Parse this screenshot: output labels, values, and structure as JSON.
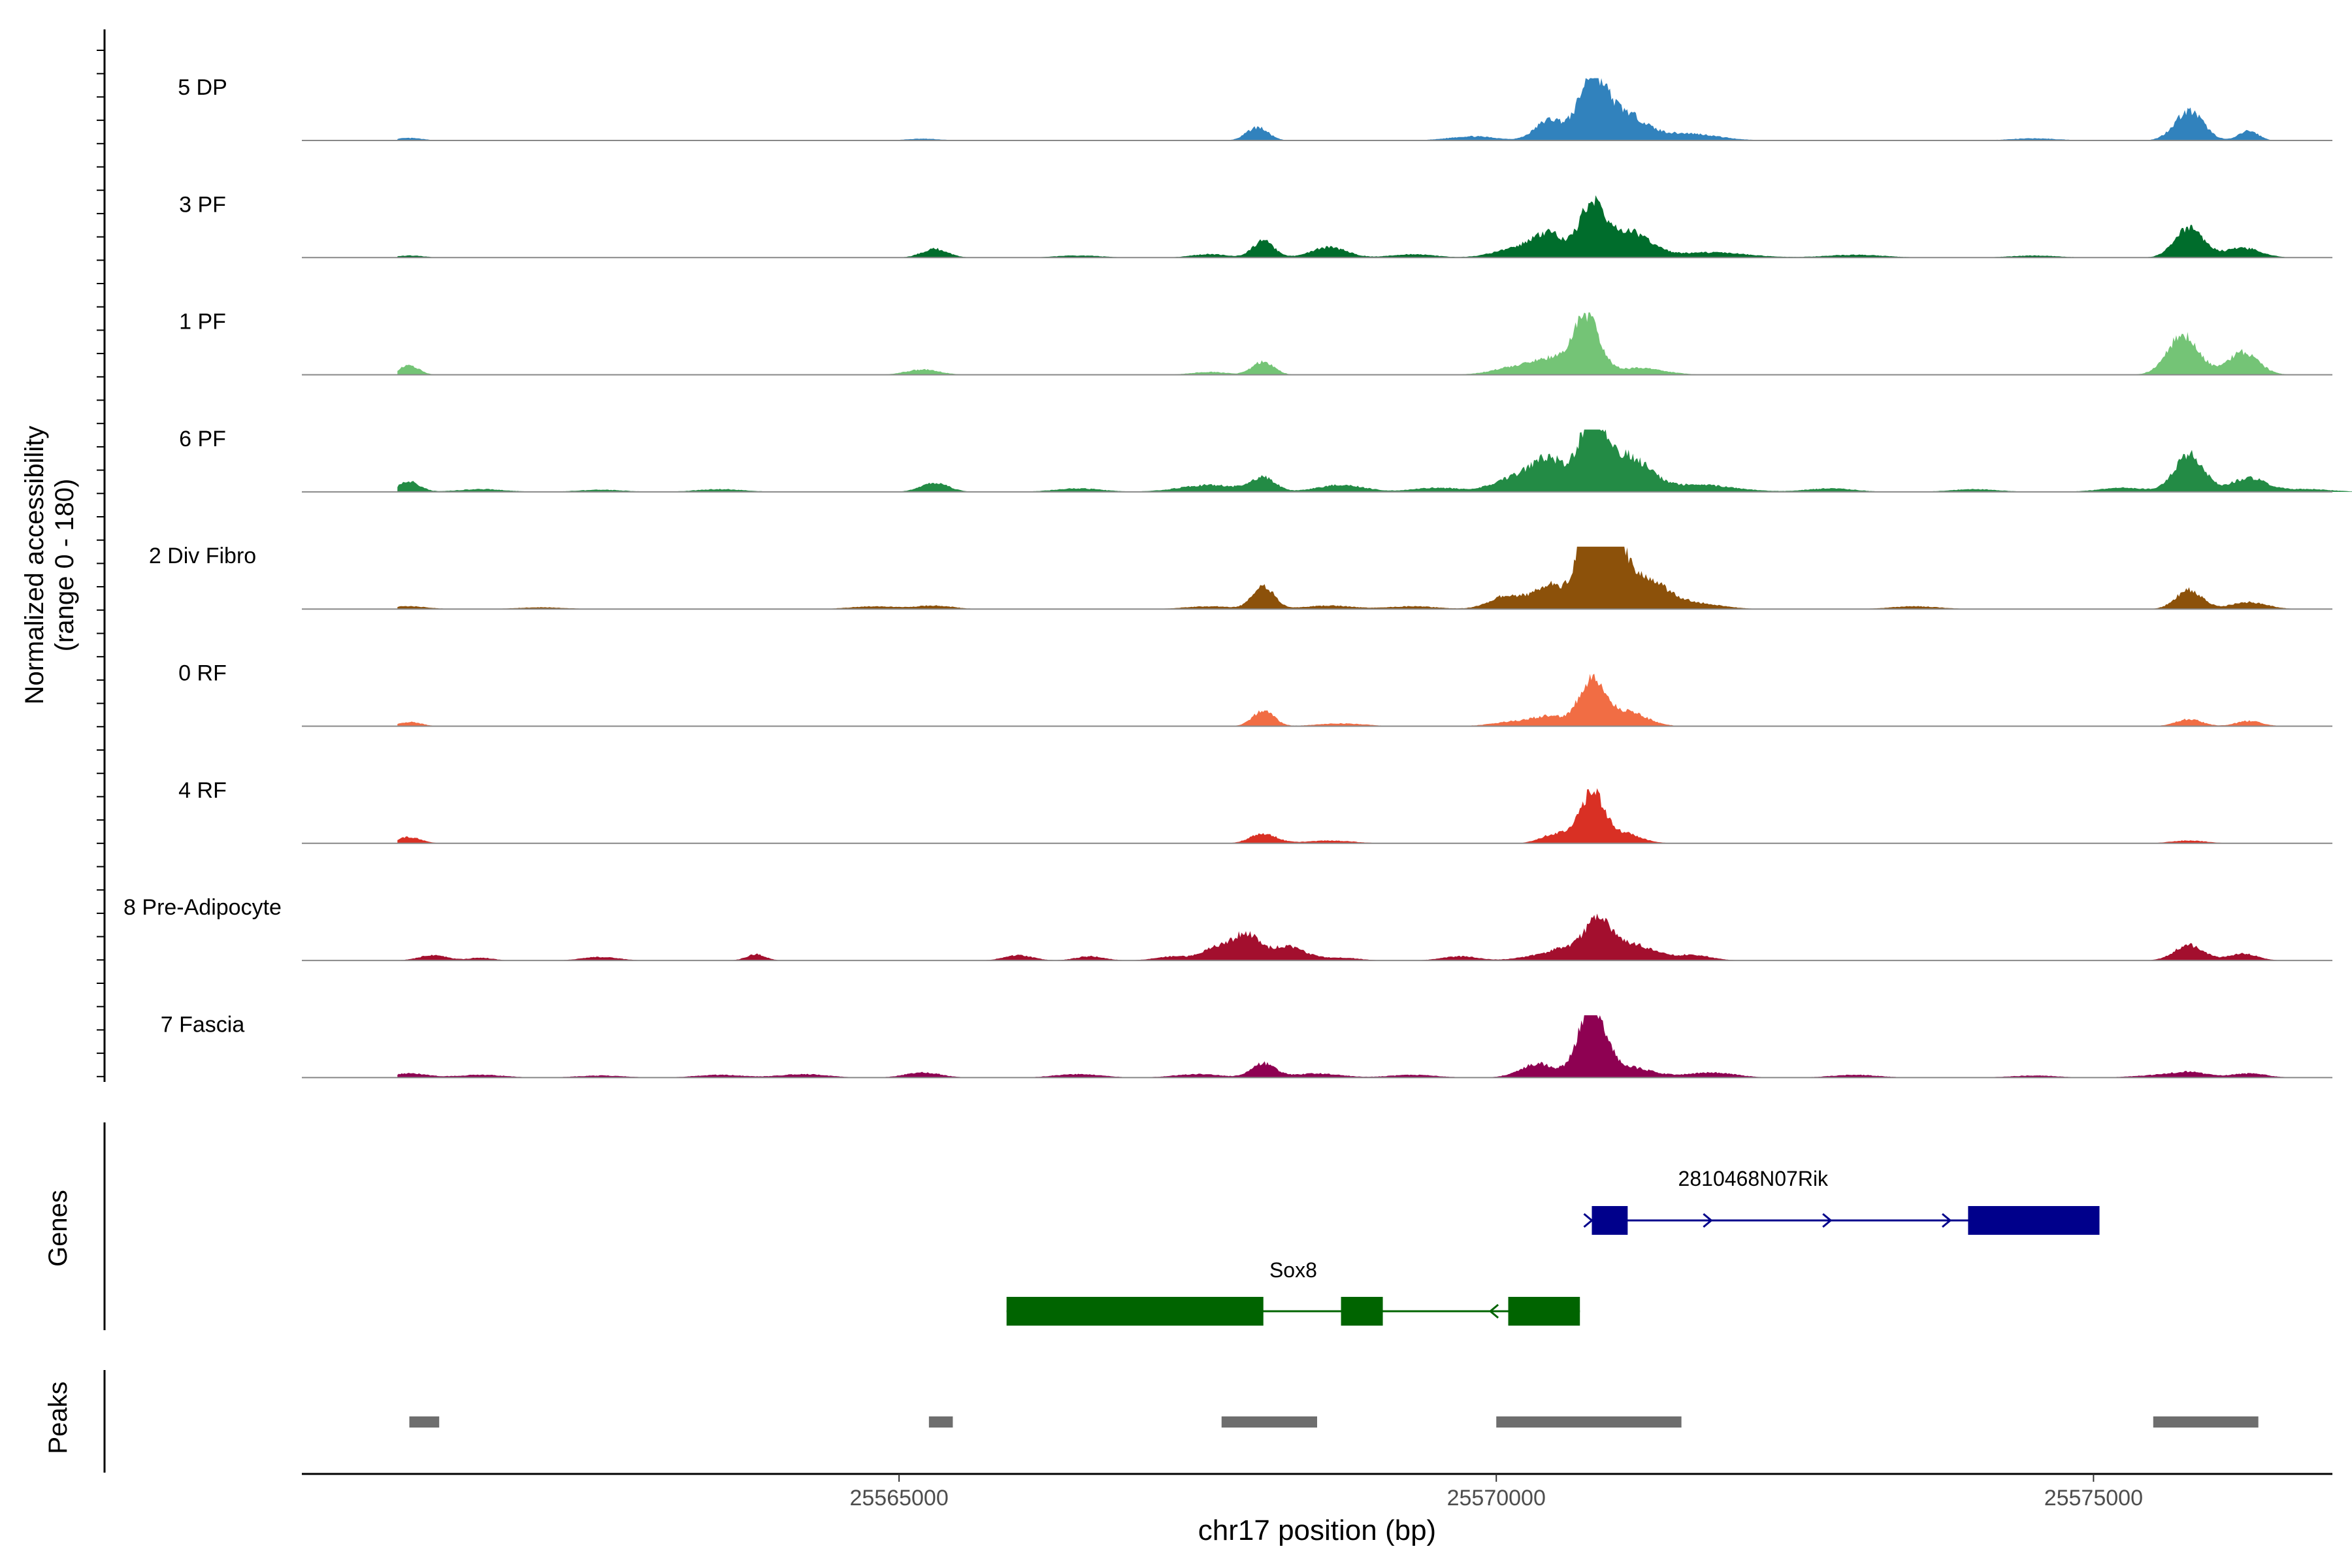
{
  "chart_data": {
    "type": "area",
    "title": "",
    "ylabel": "Normalized accessibility",
    "ylabel_range": "(range 0 - 180)",
    "xlabel": "chr17 position (bp)",
    "xlim": [
      25560000,
      25577000
    ],
    "ylim": [
      0,
      180
    ],
    "xticks": [
      25565000,
      25570000,
      25575000
    ],
    "x_tick_labels": [
      "25565000",
      "25570000",
      "25575000"
    ],
    "tracks": [
      {
        "name": "5 DP",
        "color": "#3182BD",
        "peaks": [
          [
            25560900,
            7,
            110
          ],
          [
            25565200,
            5,
            140
          ],
          [
            25568000,
            38,
            90
          ],
          [
            25569800,
            12,
            200
          ],
          [
            25570450,
            60,
            120
          ],
          [
            25570800,
            165,
            110
          ],
          [
            25571050,
            80,
            180
          ],
          [
            25571600,
            20,
            250
          ],
          [
            25574500,
            6,
            200
          ],
          [
            25575800,
            85,
            120
          ],
          [
            25576300,
            28,
            80
          ]
        ]
      },
      {
        "name": "3 PF",
        "color": "#006D2C",
        "peaks": [
          [
            25560900,
            6,
            120
          ],
          [
            25565300,
            25,
            110
          ],
          [
            25566500,
            6,
            200
          ],
          [
            25567600,
            10,
            150
          ],
          [
            25568050,
            48,
            90
          ],
          [
            25568600,
            30,
            150
          ],
          [
            25569300,
            10,
            180
          ],
          [
            25570200,
            28,
            200
          ],
          [
            25570450,
            60,
            130
          ],
          [
            25570800,
            150,
            100
          ],
          [
            25571100,
            75,
            180
          ],
          [
            25571800,
            15,
            300
          ],
          [
            25573000,
            8,
            250
          ],
          [
            25574500,
            6,
            200
          ],
          [
            25575800,
            85,
            120
          ],
          [
            25576250,
            28,
            150
          ]
        ]
      },
      {
        "name": "1 PF",
        "color": "#74C476",
        "peaks": [
          [
            25560900,
            28,
            80
          ],
          [
            25565200,
            15,
            140
          ],
          [
            25567600,
            8,
            150
          ],
          [
            25568050,
            38,
            90
          ],
          [
            25570200,
            25,
            200
          ],
          [
            25570450,
            35,
            120
          ],
          [
            25570750,
            175,
            110
          ],
          [
            25571200,
            20,
            200
          ],
          [
            25575750,
            115,
            130
          ],
          [
            25576250,
            65,
            130
          ]
        ]
      },
      {
        "name": "6 PF",
        "color": "#238B45",
        "peaks": [
          [
            25560900,
            30,
            90
          ],
          [
            25561500,
            8,
            200
          ],
          [
            25562500,
            6,
            200
          ],
          [
            25563500,
            8,
            200
          ],
          [
            25565300,
            25,
            120
          ],
          [
            25566500,
            10,
            200
          ],
          [
            25567600,
            20,
            250
          ],
          [
            25568050,
            40,
            100
          ],
          [
            25568700,
            20,
            200
          ],
          [
            25569500,
            12,
            200
          ],
          [
            25570200,
            45,
            200
          ],
          [
            25570450,
            80,
            130
          ],
          [
            25570800,
            195,
            110
          ],
          [
            25571100,
            100,
            180
          ],
          [
            25571700,
            20,
            300
          ],
          [
            25572800,
            10,
            200
          ],
          [
            25574000,
            8,
            200
          ],
          [
            25575250,
            12,
            200
          ],
          [
            25575800,
            110,
            120
          ],
          [
            25576300,
            40,
            150
          ],
          [
            25576800,
            8,
            200
          ]
        ]
      },
      {
        "name": "2 Div Fibro",
        "color": "#8C510A",
        "peaks": [
          [
            25560900,
            8,
            150
          ],
          [
            25562000,
            5,
            200
          ],
          [
            25564800,
            8,
            200
          ],
          [
            25565300,
            10,
            150
          ],
          [
            25567600,
            8,
            200
          ],
          [
            25568050,
            65,
            90
          ],
          [
            25568600,
            10,
            200
          ],
          [
            25569300,
            8,
            200
          ],
          [
            25570100,
            40,
            150
          ],
          [
            25570450,
            70,
            120
          ],
          [
            25570750,
            210,
            90
          ],
          [
            25570950,
            200,
            100
          ],
          [
            25571200,
            100,
            200
          ],
          [
            25571700,
            15,
            200
          ],
          [
            25573500,
            8,
            200
          ],
          [
            25575800,
            55,
            110
          ],
          [
            25576300,
            20,
            150
          ]
        ]
      },
      {
        "name": "0 RF",
        "color": "#F16D44",
        "peaks": [
          [
            25560900,
            12,
            100
          ],
          [
            25568050,
            45,
            90
          ],
          [
            25568700,
            8,
            200
          ],
          [
            25570200,
            15,
            200
          ],
          [
            25570450,
            22,
            120
          ],
          [
            25570800,
            130,
            110
          ],
          [
            25571100,
            40,
            160
          ],
          [
            25575800,
            20,
            110
          ],
          [
            25576300,
            15,
            110
          ]
        ]
      },
      {
        "name": "4 RF",
        "color": "#D93024",
        "peaks": [
          [
            25560900,
            18,
            100
          ],
          [
            25568050,
            28,
            110
          ],
          [
            25568600,
            8,
            200
          ],
          [
            25570500,
            28,
            120
          ],
          [
            25570800,
            140,
            100
          ],
          [
            25571050,
            30,
            150
          ],
          [
            25575800,
            8,
            150
          ]
        ]
      },
      {
        "name": "8 Pre-Adipocyte",
        "color": "#A30F2E",
        "peaks": [
          [
            25561100,
            15,
            120
          ],
          [
            25561500,
            8,
            100
          ],
          [
            25562500,
            10,
            150
          ],
          [
            25563800,
            18,
            80
          ],
          [
            25566000,
            15,
            120
          ],
          [
            25566600,
            12,
            120
          ],
          [
            25567300,
            12,
            150
          ],
          [
            25567650,
            35,
            110
          ],
          [
            25567900,
            75,
            110
          ],
          [
            25568250,
            40,
            150
          ],
          [
            25568700,
            8,
            150
          ],
          [
            25569700,
            12,
            150
          ],
          [
            25570300,
            10,
            150
          ],
          [
            25570600,
            35,
            150
          ],
          [
            25570850,
            100,
            100
          ],
          [
            25571100,
            50,
            200
          ],
          [
            25571650,
            15,
            150
          ],
          [
            25575800,
            45,
            120
          ],
          [
            25576250,
            20,
            120
          ]
        ]
      },
      {
        "name": "7 Fascia",
        "color": "#8E0152",
        "peaks": [
          [
            25560900,
            12,
            150
          ],
          [
            25561500,
            8,
            200
          ],
          [
            25562500,
            6,
            200
          ],
          [
            25563500,
            8,
            200
          ],
          [
            25564200,
            10,
            200
          ],
          [
            25565200,
            15,
            150
          ],
          [
            25566500,
            10,
            200
          ],
          [
            25567500,
            10,
            200
          ],
          [
            25568050,
            40,
            100
          ],
          [
            25568500,
            12,
            200
          ],
          [
            25569300,
            8,
            200
          ],
          [
            25570350,
            40,
            150
          ],
          [
            25570800,
            210,
            110
          ],
          [
            25571100,
            30,
            200
          ],
          [
            25571800,
            15,
            200
          ],
          [
            25573000,
            8,
            200
          ],
          [
            25574500,
            6,
            200
          ],
          [
            25575500,
            6,
            200
          ],
          [
            25575800,
            15,
            150
          ],
          [
            25576300,
            12,
            150
          ]
        ]
      }
    ],
    "genes": [
      {
        "name": "2810468N07Rik",
        "strand": "+",
        "color": "#00008B",
        "start": 25570800,
        "end": 25575050,
        "exons": [
          [
            25570800,
            25571100
          ],
          [
            25573950,
            25575050
          ]
        ],
        "arrows": [
          25570800,
          25571800,
          25572800,
          25573800
        ]
      },
      {
        "name": "Sox8",
        "strand": "-",
        "color": "#006400",
        "start": 25565900,
        "end": 25570700,
        "exons": [
          [
            25565900,
            25568050
          ],
          [
            25568700,
            25569050
          ],
          [
            25570100,
            25570700
          ]
        ],
        "arrows": [
          25569950
        ]
      }
    ],
    "peak_regions": [
      [
        25560900,
        25561150
      ],
      [
        25565250,
        25565450
      ],
      [
        25567700,
        25568500
      ],
      [
        25570000,
        25571550
      ],
      [
        25575500,
        25576380
      ]
    ],
    "genes_label": "Genes",
    "peaks_label": "Peaks"
  }
}
